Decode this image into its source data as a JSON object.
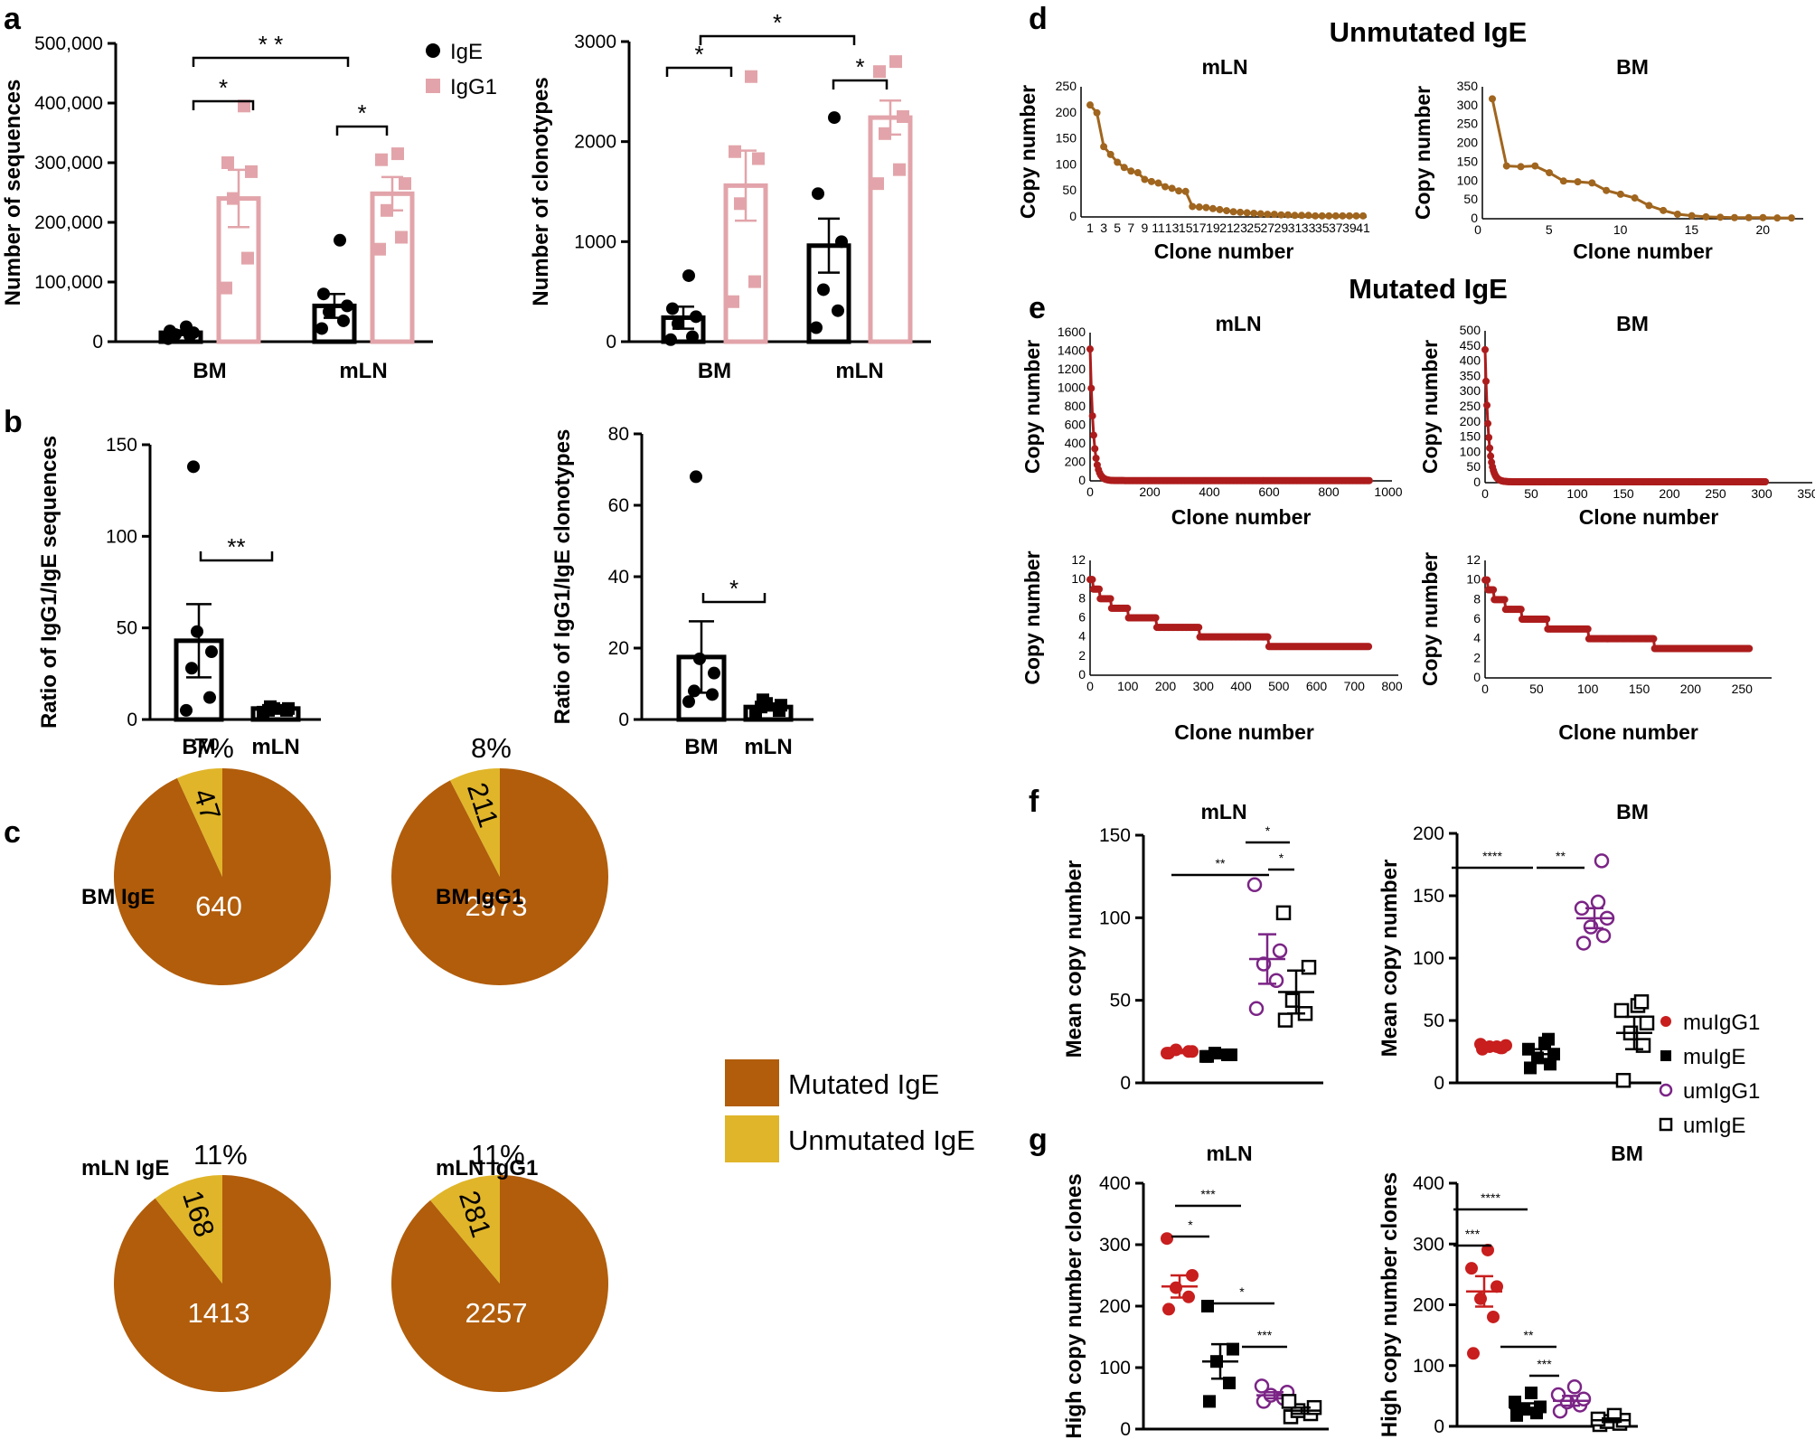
{
  "panels": [
    "a",
    "b",
    "c",
    "d",
    "e",
    "f",
    "g"
  ],
  "colors": {
    "ige": "#000000",
    "igg1": "#e2a4aa",
    "mutated": "#b15d0b",
    "unmutated": "#e0b52a",
    "d_line": "#a0651e",
    "e_line": "#ad1c1c",
    "mu_igg1": "#c81e1e",
    "um_igg1": "#7b2486"
  },
  "chart_data": [
    {
      "id": "a1",
      "type": "bar",
      "title": "",
      "ylabel": "Number of sequences",
      "categories": [
        "BM",
        "mLN"
      ],
      "ylim": [
        0,
        500000
      ],
      "yticks": [
        "0",
        "100,000",
        "200,000",
        "300,000",
        "400,000",
        "500,000"
      ],
      "ytick_values": [
        0,
        100000,
        200000,
        300000,
        400000,
        500000
      ],
      "legend": [
        "IgE",
        "IgG1"
      ],
      "series": [
        {
          "name": "IgE",
          "values": [
            15000,
            60000
          ],
          "sem": [
            4000,
            20000
          ],
          "points": [
            [
              5000,
              10000,
              12000,
              15000,
              18000,
              25000
            ],
            [
              22000,
              35000,
              50000,
              60000,
              80000,
              170000
            ]
          ]
        },
        {
          "name": "IgG1",
          "values": [
            240000,
            248000
          ],
          "sem": [
            48000,
            28000
          ],
          "points": [
            [
              90000,
              140000,
              240000,
              285000,
              300000,
              395000
            ],
            [
              155000,
              175000,
              220000,
              265000,
              305000,
              315000
            ]
          ]
        }
      ],
      "significance": [
        {
          "label": "*",
          "from": "BM IgE",
          "to": "BM IgG1"
        },
        {
          "label": "* *",
          "from": "BM IgE",
          "to": "mLN IgE"
        },
        {
          "label": "*",
          "from": "mLN IgE",
          "to": "mLN IgG1"
        }
      ]
    },
    {
      "id": "a2",
      "type": "bar",
      "ylabel": "Number of clonotypes",
      "categories": [
        "BM",
        "mLN"
      ],
      "ylim": [
        0,
        3000
      ],
      "yticks": [
        "0",
        "1000",
        "2000",
        "3000"
      ],
      "ytick_values": [
        0,
        1000,
        2000,
        3000
      ],
      "series": [
        {
          "name": "IgE",
          "values": [
            240,
            960
          ],
          "sem": [
            110,
            270
          ],
          "points": [
            [
              20,
              50,
              180,
              250,
              330,
              660
            ],
            [
              140,
              310,
              520,
              1000,
              1480,
              2240
            ]
          ]
        },
        {
          "name": "IgG1",
          "values": [
            1560,
            2240
          ],
          "sem": [
            350,
            170
          ],
          "points": [
            [
              400,
              600,
              1380,
              1830,
              1900,
              2650
            ],
            [
              1580,
              1720,
              2080,
              2250,
              2700,
              2800
            ]
          ]
        }
      ],
      "significance": [
        {
          "label": "*",
          "from": "BM IgE",
          "to": "BM IgG1"
        },
        {
          "label": "*",
          "from": "BM IgE",
          "to": "mLN IgE"
        },
        {
          "label": "*",
          "from": "mLN IgE",
          "to": "mLN IgG1"
        }
      ]
    },
    {
      "id": "b1",
      "type": "bar",
      "ylabel": "Ratio of IgG1/IgE sequences",
      "categories": [
        "BM",
        "mLN"
      ],
      "ylim": [
        0,
        150
      ],
      "yticks": [
        "0",
        "50",
        "100",
        "150"
      ],
      "ytick_values": [
        0,
        50,
        100,
        150
      ],
      "values": [
        43,
        6
      ],
      "sem": [
        20,
        1
      ],
      "points": [
        [
          5,
          12,
          28,
          37,
          48,
          138
        ],
        [
          4,
          5,
          5,
          6,
          6,
          7
        ]
      ],
      "significance": [
        {
          "label": "**",
          "from": "BM",
          "to": "mLN"
        }
      ]
    },
    {
      "id": "b2",
      "type": "bar",
      "ylabel": "Ratio of IgG1/IgE clonotypes",
      "categories": [
        "BM",
        "mLN"
      ],
      "ylim": [
        0,
        80
      ],
      "yticks": [
        "0",
        "20",
        "40",
        "60",
        "80"
      ],
      "ytick_values": [
        0,
        20,
        40,
        60,
        80
      ],
      "values": [
        17.5,
        3.5
      ],
      "sem": [
        10,
        1
      ],
      "points": [
        [
          5,
          7,
          8,
          13,
          17,
          68
        ],
        [
          1.5,
          2.5,
          3.5,
          4,
          4.5,
          5.5
        ]
      ],
      "significance": [
        {
          "label": "*",
          "from": "BM",
          "to": "mLN"
        }
      ]
    },
    {
      "id": "c",
      "type": "pie",
      "legend": [
        "Mutated IgE",
        "Unmutated IgE"
      ],
      "pies": [
        {
          "label": "BM IgE",
          "mutated": 640,
          "unmutated": 47,
          "percent": "7%"
        },
        {
          "label": "BM IgG1",
          "mutated": 2573,
          "unmutated": 211,
          "percent": "8%"
        },
        {
          "label": "mLN IgE",
          "mutated": 1413,
          "unmutated": 168,
          "percent": "11%"
        },
        {
          "label": "mLN IgG1",
          "mutated": 2257,
          "unmutated": 281,
          "percent": "11%"
        }
      ]
    },
    {
      "id": "d1",
      "type": "line",
      "section": "Unmutated IgE",
      "title": "mLN",
      "xlabel": "Clone number",
      "ylabel": "Copy number",
      "ylim": [
        0,
        250
      ],
      "yticks": [
        "0",
        "50",
        "100",
        "150",
        "200",
        "250"
      ],
      "xticks": [
        "1",
        "3",
        "5",
        "7",
        "9",
        "11",
        "13",
        "15",
        "17",
        "19",
        "21",
        "23",
        "25",
        "27",
        "29",
        "31",
        "33",
        "35",
        "37",
        "39",
        "41"
      ],
      "y": [
        215,
        200,
        135,
        120,
        105,
        95,
        88,
        85,
        72,
        68,
        65,
        58,
        55,
        50,
        49,
        20,
        19,
        18,
        16,
        14,
        12,
        10,
        9,
        8,
        7,
        6,
        5,
        5,
        4,
        4,
        3,
        3,
        3,
        2,
        2,
        2,
        2,
        2,
        2,
        2,
        2
      ]
    },
    {
      "id": "d2",
      "type": "line",
      "section": "Unmutated IgE",
      "title": "BM",
      "xlabel": "Clone number",
      "ylabel": "Copy number",
      "ylim": [
        0,
        350
      ],
      "yticks": [
        "0",
        "50",
        "100",
        "150",
        "200",
        "250",
        "300",
        "350"
      ],
      "xticks": [
        "0",
        "5",
        "10",
        "15",
        "20"
      ],
      "y": [
        318,
        140,
        138,
        140,
        122,
        100,
        98,
        95,
        75,
        65,
        55,
        35,
        22,
        12,
        8,
        5,
        4,
        3,
        3,
        3,
        2,
        2
      ]
    },
    {
      "id": "e1",
      "type": "line",
      "section": "Mutated IgE",
      "title": "mLN",
      "xlabel": "Clone number",
      "ylabel": "Copy number",
      "ylim": [
        0,
        1600
      ],
      "yticks": [
        "0",
        "200",
        "400",
        "600",
        "800",
        "1000",
        "1200",
        "1400",
        "1600"
      ],
      "xticks": [
        "0",
        "200",
        "400",
        "600",
        "800",
        "1000"
      ],
      "n_clones": 940,
      "max_copy": 1420
    },
    {
      "id": "e2",
      "type": "line",
      "section": "Mutated IgE",
      "title": "BM",
      "xlabel": "Clone number",
      "ylabel": "Copy number",
      "ylim": [
        0,
        500
      ],
      "yticks": [
        "0",
        "50",
        "100",
        "150",
        "200",
        "250",
        "300",
        "350",
        "400",
        "450",
        "500"
      ],
      "xticks": [
        "0",
        "50",
        "100",
        "150",
        "200",
        "250",
        "300",
        "350"
      ],
      "n_clones": 305,
      "max_copy": 435
    },
    {
      "id": "e3",
      "type": "line",
      "xlabel": "Clone number",
      "ylabel": "Copy number",
      "ylim": [
        0,
        12
      ],
      "yticks": [
        "0",
        "2",
        "4",
        "6",
        "8",
        "10",
        "12"
      ],
      "xticks": [
        "0",
        "100",
        "200",
        "300",
        "400",
        "500",
        "600",
        "700",
        "800"
      ],
      "n_clones": 740
    },
    {
      "id": "e4",
      "type": "line",
      "xlabel": "Clone number",
      "ylabel": "Copy number",
      "ylim": [
        0,
        12
      ],
      "yticks": [
        "0",
        "2",
        "4",
        "6",
        "8",
        "10",
        "12"
      ],
      "xticks": [
        "0",
        "50",
        "100",
        "150",
        "200",
        "250"
      ],
      "n_clones": 258
    },
    {
      "id": "f1",
      "type": "scatter",
      "title": "mLN",
      "ylabel": "Mean copy number",
      "ylim": [
        0,
        150
      ],
      "yticks": [
        "0",
        "50",
        "100",
        "150"
      ],
      "groups": [
        "muIgG1",
        "muIgE",
        "umIgG1",
        "umIgE"
      ],
      "means": [
        19,
        17,
        75,
        55
      ],
      "sem": [
        1,
        1,
        15,
        13
      ],
      "points": [
        [
          18,
          19,
          20,
          19,
          18
        ],
        [
          16,
          17,
          18,
          17,
          16
        ],
        [
          45,
          62,
          72,
          80,
          120
        ],
        [
          38,
          42,
          50,
          70,
          103
        ]
      ],
      "significance": [
        {
          "label": "**"
        },
        {
          "label": "*"
        },
        {
          "label": "*"
        }
      ]
    },
    {
      "id": "f2",
      "type": "scatter",
      "title": "BM",
      "ylabel": "Mean  copy number",
      "ylim": [
        0,
        200
      ],
      "yticks": [
        "0",
        "50",
        "100",
        "150",
        "200"
      ],
      "groups": [
        "muIgG1",
        "muIgE",
        "umIgG1",
        "umIgE"
      ],
      "means": [
        29,
        23,
        132,
        40
      ],
      "sem": [
        1,
        4,
        8,
        13
      ],
      "points": [
        [
          27,
          28,
          29,
          30,
          31,
          29,
          28
        ],
        [
          12,
          15,
          20,
          23,
          27,
          32,
          35
        ],
        [
          112,
          118,
          125,
          132,
          140,
          145,
          178
        ],
        [
          2,
          30,
          40,
          48,
          58,
          62,
          65
        ]
      ],
      "significance": [
        {
          "label": "****"
        },
        {
          "label": "**"
        }
      ]
    },
    {
      "id": "g1",
      "type": "scatter",
      "title": "mLN",
      "ylabel": "High copy number clones",
      "ylim": [
        0,
        400
      ],
      "yticks": [
        "0",
        "100",
        "200",
        "300",
        "400"
      ],
      "groups": [
        "muIgG1",
        "muIgE",
        "umIgG1",
        "umIgE"
      ],
      "means": [
        232,
        110,
        55,
        30
      ],
      "sem": [
        18,
        28,
        5,
        5
      ],
      "points": [
        [
          195,
          215,
          230,
          250,
          310
        ],
        [
          45,
          75,
          110,
          130,
          200
        ],
        [
          45,
          50,
          55,
          60,
          70
        ],
        [
          20,
          25,
          30,
          35,
          45
        ]
      ],
      "significance": [
        {
          "label": "*"
        },
        {
          "label": "***"
        },
        {
          "label": "*"
        },
        {
          "label": "***"
        }
      ]
    },
    {
      "id": "g2",
      "type": "scatter",
      "title": "BM",
      "ylabel": "High copy number clones",
      "ylim": [
        0,
        400
      ],
      "yticks": [
        "0",
        "100",
        "200",
        "300",
        "400"
      ],
      "groups": [
        "muIgG1",
        "muIgE",
        "umIgG1",
        "umIgE"
      ],
      "means": [
        222,
        30,
        42,
        10
      ],
      "sem": [
        25,
        8,
        8,
        3
      ],
      "points": [
        [
          120,
          180,
          210,
          230,
          260,
          290
        ],
        [
          18,
          22,
          28,
          32,
          40,
          55
        ],
        [
          25,
          35,
          40,
          45,
          52,
          65
        ],
        [
          3,
          5,
          8,
          10,
          12,
          18
        ]
      ],
      "significance": [
        {
          "label": "****"
        },
        {
          "label": "***"
        },
        {
          "label": "**"
        },
        {
          "label": "***"
        }
      ]
    },
    {
      "id": "fg_legend",
      "type": "legend",
      "entries": [
        "muIgG1",
        "muIgE",
        "umIgG1",
        "umIgE"
      ]
    }
  ]
}
